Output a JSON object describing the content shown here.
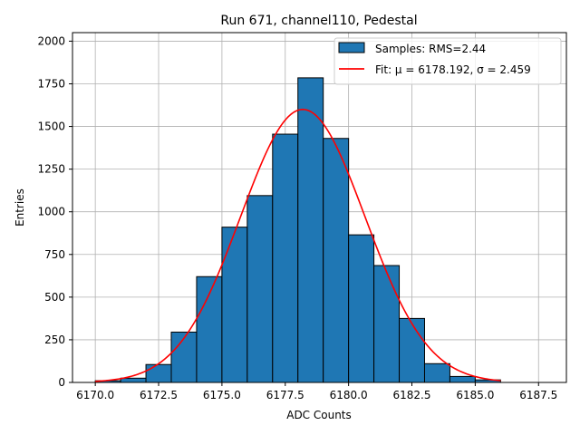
{
  "chart_data": {
    "type": "bar",
    "title": "Run 671, channel110, Pedestal",
    "xlabel": "ADC Counts",
    "ylabel": "Entries",
    "xlim": [
      6169.1,
      6188.6
    ],
    "ylim": [
      0,
      2050
    ],
    "grid": true,
    "x_ticks": [
      6170.0,
      6172.5,
      6175.0,
      6177.5,
      6180.0,
      6182.5,
      6185.0,
      6187.5
    ],
    "x_tick_labels": [
      "6170.0",
      "6172.5",
      "6175.0",
      "6177.5",
      "6180.0",
      "6182.5",
      "6185.0",
      "6187.5"
    ],
    "y_ticks": [
      0,
      250,
      500,
      750,
      1000,
      1250,
      1500,
      1750,
      2000
    ],
    "y_tick_labels": [
      "0",
      "250",
      "500",
      "750",
      "1000",
      "1250",
      "1500",
      "1750",
      "2000"
    ],
    "bins": [
      {
        "start": 6170,
        "end": 6171,
        "value": 10
      },
      {
        "start": 6171,
        "end": 6172,
        "value": 25
      },
      {
        "start": 6172,
        "end": 6173,
        "value": 105
      },
      {
        "start": 6173,
        "end": 6174,
        "value": 295
      },
      {
        "start": 6174,
        "end": 6175,
        "value": 620
      },
      {
        "start": 6175,
        "end": 6176,
        "value": 910
      },
      {
        "start": 6176,
        "end": 6177,
        "value": 1095
      },
      {
        "start": 6177,
        "end": 6178,
        "value": 1455
      },
      {
        "start": 6178,
        "end": 6179,
        "value": 1785
      },
      {
        "start": 6179,
        "end": 6180,
        "value": 1430
      },
      {
        "start": 6180,
        "end": 6181,
        "value": 865
      },
      {
        "start": 6181,
        "end": 6182,
        "value": 685
      },
      {
        "start": 6182,
        "end": 6183,
        "value": 375
      },
      {
        "start": 6183,
        "end": 6184,
        "value": 110
      },
      {
        "start": 6184,
        "end": 6185,
        "value": 35
      },
      {
        "start": 6185,
        "end": 6186,
        "value": 15
      }
    ],
    "fit": {
      "mu": 6178.192,
      "sigma": 2.459,
      "amplitude": 1600,
      "x_range": [
        6170,
        6186
      ]
    },
    "legend": {
      "position": "top-right",
      "entries": [
        {
          "label": "Samples: RMS=2.44",
          "kind": "patch"
        },
        {
          "label": "Fit: μ = 6178.192, σ = 2.459",
          "kind": "line"
        }
      ]
    },
    "colors": {
      "bar_fill": "#1f77b4",
      "bar_edge": "#000000",
      "fit_line": "#ff0000",
      "grid": "#b0b0b0",
      "axis": "#000000"
    }
  }
}
